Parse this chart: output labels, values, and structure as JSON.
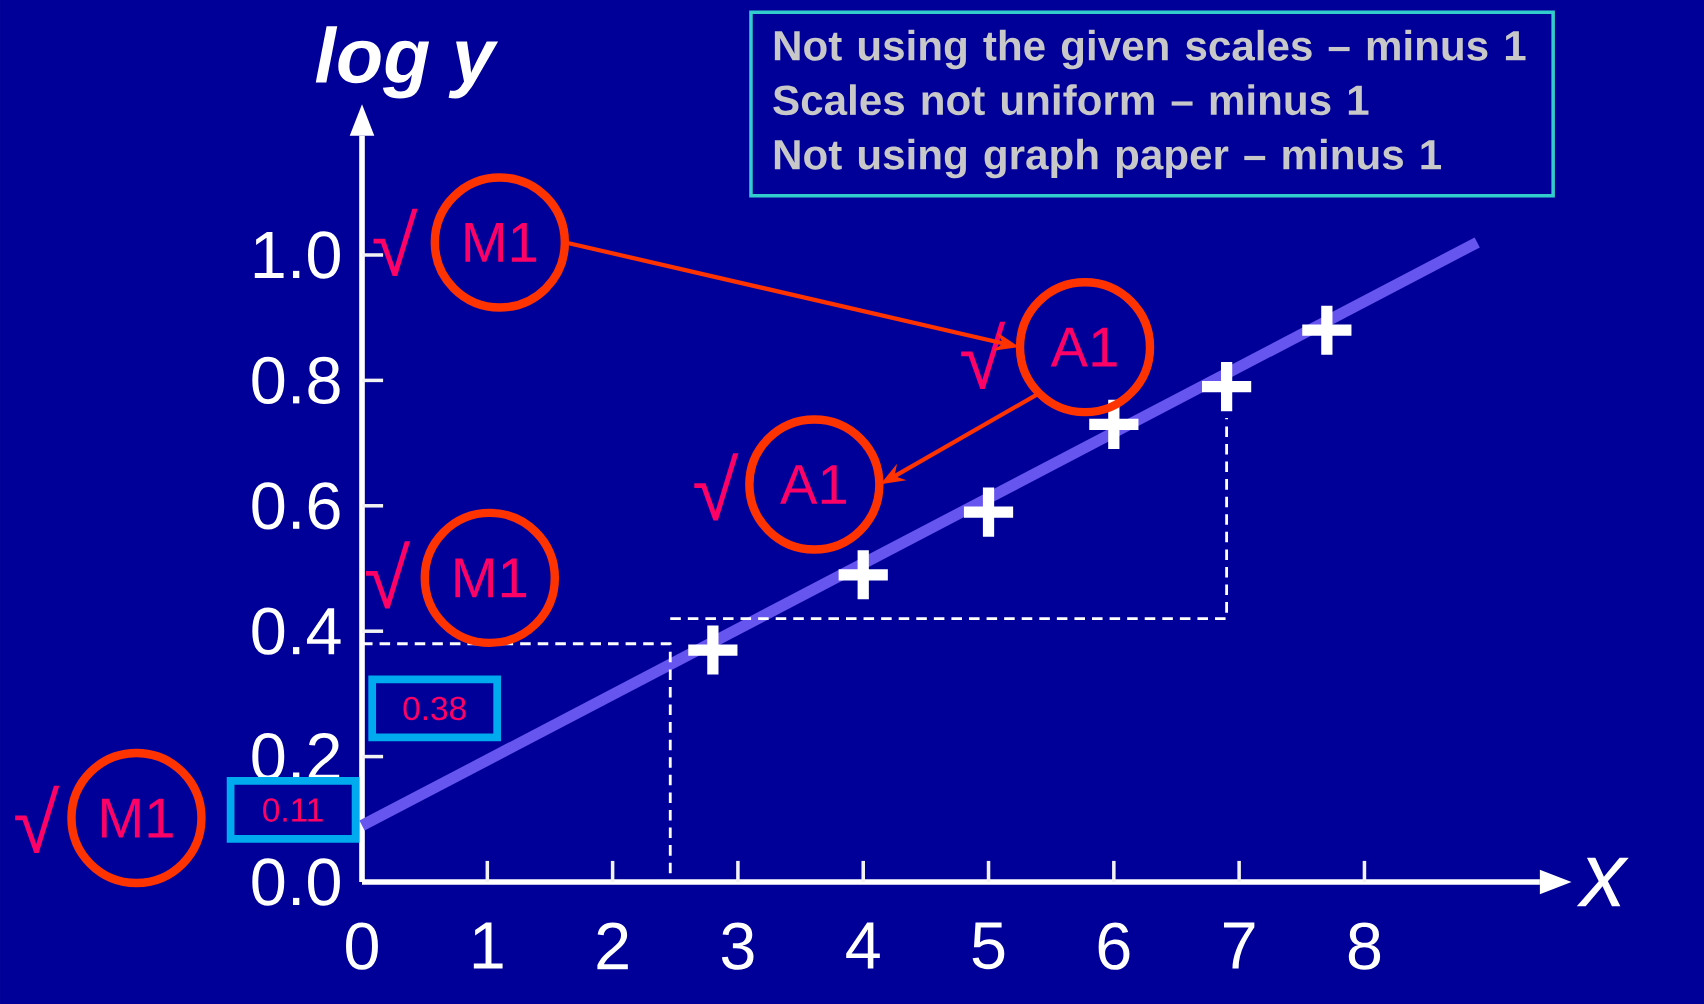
{
  "chart_data": {
    "type": "scatter",
    "xlabel": "x",
    "ylabel": "log y",
    "xlim": [
      0,
      9.4
    ],
    "ylim": [
      0,
      1.19
    ],
    "xticks": [
      0,
      1,
      2,
      3,
      4,
      5,
      6,
      7,
      8
    ],
    "yticks": [
      {
        "value": 0,
        "label": "0.0"
      },
      {
        "value": 0.2,
        "label": "0.2"
      },
      {
        "value": 0.4,
        "label": "0.4"
      },
      {
        "value": 0.6,
        "label": "0.6"
      },
      {
        "value": 0.8,
        "label": "0.8"
      },
      {
        "value": 1.0,
        "label": "1.0"
      }
    ],
    "series": [
      {
        "type": "line",
        "color": "#6655ee",
        "marker": "none",
        "x": [
          0,
          8.9
        ],
        "values": [
          0.09,
          1.02
        ]
      },
      {
        "type": "line",
        "color": "#ffffff",
        "marker": "none",
        "line_style": "dashed",
        "x": [
          0,
          2.46,
          2.46
        ],
        "values": [
          0.38,
          0.38,
          0
        ]
      },
      {
        "type": "line",
        "color": "#ffffff",
        "marker": "none",
        "line_style": "dashed",
        "x": [
          2.46,
          6.9,
          6.9
        ],
        "values": [
          0.42,
          0.42,
          0.74
        ]
      },
      {
        "color": "#ffffff",
        "marker": "cross",
        "x": [
          2.8,
          4.0,
          5.0,
          6.0,
          6.9,
          7.7
        ],
        "values": [
          0.37,
          0.49,
          0.59,
          0.73,
          0.79,
          0.88
        ]
      }
    ],
    "annotations": [
      "√",
      "M1",
      "√",
      "A1",
      "√",
      "A1",
      "√",
      "M1",
      "√",
      "M1",
      "0.38",
      "0.11",
      "Not using the given scales – minus 1",
      "Scales not uniform – minus 1",
      "Not using graph paper – minus 1"
    ]
  }
}
